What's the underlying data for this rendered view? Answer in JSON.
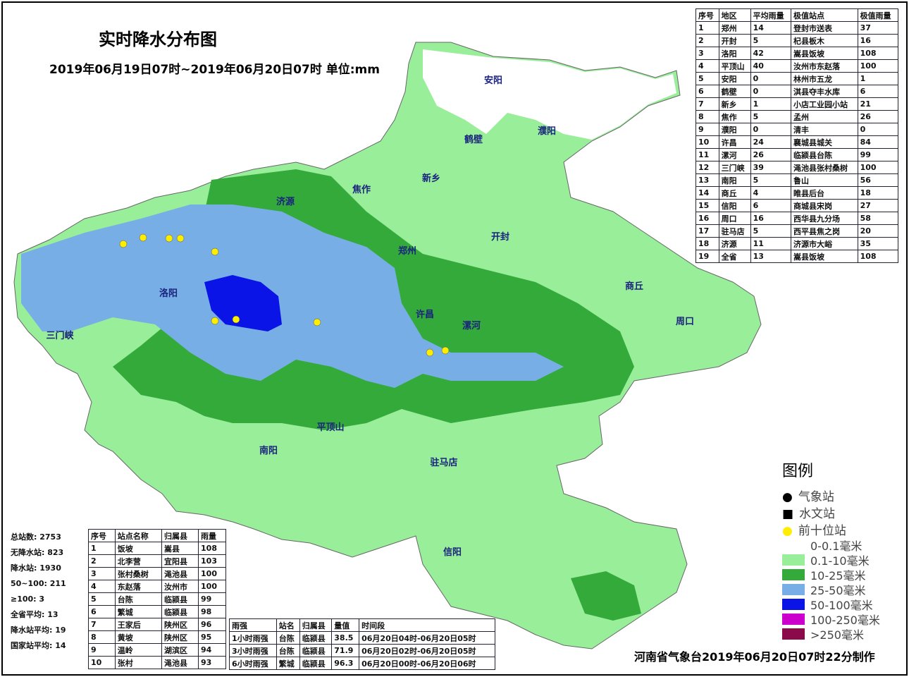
{
  "title": "实时降水分布图",
  "subtitle": "2019年06月19日07时~2019年06月20日07时 单位:mm",
  "region_table": {
    "header": [
      "序号",
      "地区",
      "平均雨量",
      "极值站点",
      "极值雨量"
    ],
    "rows": [
      [
        1,
        "郑州",
        14,
        "登封市送表",
        37
      ],
      [
        2,
        "开封",
        5,
        "杞县板木",
        16
      ],
      [
        3,
        "洛阳",
        42,
        "嵩县饭坡",
        108
      ],
      [
        4,
        "平顶山",
        40,
        "汝州市东赵落",
        100
      ],
      [
        5,
        "安阳",
        0,
        "林州市五龙",
        1
      ],
      [
        6,
        "鹤壁",
        0,
        "淇县夺丰水库",
        6
      ],
      [
        7,
        "新乡",
        1,
        "小店工业园小站",
        21
      ],
      [
        8,
        "焦作",
        5,
        "孟州",
        26
      ],
      [
        9,
        "濮阳",
        0,
        "清丰",
        0
      ],
      [
        10,
        "许昌",
        24,
        "襄城县城关",
        84
      ],
      [
        11,
        "漯河",
        26,
        "临颍县台陈",
        99
      ],
      [
        12,
        "三门峡",
        39,
        "渑池县张村桑树",
        100
      ],
      [
        13,
        "南阳",
        5,
        "鲁山",
        56
      ],
      [
        14,
        "商丘",
        4,
        "睢县后台",
        18
      ],
      [
        15,
        "信阳",
        6,
        "商城县宋岗",
        27
      ],
      [
        16,
        "周口",
        16,
        "西华县九分场",
        58
      ],
      [
        17,
        "驻马店",
        5,
        "西平县焦之岗",
        20
      ],
      [
        18,
        "济源",
        11,
        "济源市大峪",
        35
      ],
      [
        19,
        "全省",
        13,
        "嵩县饭坡",
        108
      ]
    ]
  },
  "stats": [
    [
      "总站数:",
      "2753"
    ],
    [
      "无降水站:",
      "823"
    ],
    [
      "降水站:",
      "1930"
    ],
    [
      "50~100:",
      "211"
    ],
    [
      "≥100:",
      "3"
    ],
    [
      "全省平均:",
      "13"
    ],
    [
      "降水站平均:",
      "19"
    ],
    [
      "国家站平均:",
      "14"
    ]
  ],
  "top10_table": {
    "header": [
      "序号",
      "站点名称",
      "归属县",
      "雨量"
    ],
    "rows": [
      [
        1,
        "饭坡",
        "嵩县",
        108
      ],
      [
        2,
        "北李营",
        "宜阳县",
        103
      ],
      [
        3,
        "张村桑树",
        "渑池县",
        100
      ],
      [
        4,
        "东赵落",
        "汝州市",
        100
      ],
      [
        5,
        "台陈",
        "临颍县",
        99
      ],
      [
        6,
        "繁城",
        "临颍县",
        98
      ],
      [
        7,
        "王家后",
        "陕州区",
        96
      ],
      [
        8,
        "黄坡",
        "陕州区",
        95
      ],
      [
        9,
        "温岭",
        "湖滨区",
        94
      ],
      [
        10,
        "张村",
        "渑池县",
        93
      ]
    ]
  },
  "intensity_table": {
    "header": [
      "雨强",
      "站名",
      "归属县",
      "量值",
      "时间段"
    ],
    "rows": [
      [
        "1小时雨强",
        "台陈",
        "临颍县",
        38.5,
        "06月20日04时-06月20日05时"
      ],
      [
        "3小时雨强",
        "台陈",
        "临颍县",
        71.9,
        "06月20日02时-06月20日05时"
      ],
      [
        "6小时雨强",
        "繁城",
        "临颍县",
        96.3,
        "06月20日00时-06月20日06时"
      ]
    ]
  },
  "legend": {
    "title": "图例",
    "stations": [
      "气象站",
      "水文站",
      "前十位站"
    ],
    "ranges": [
      {
        "label": "0-0.1毫米",
        "color": "#ffffff"
      },
      {
        "label": "0.1-10毫米",
        "color": "#99ee99"
      },
      {
        "label": "10-25毫米",
        "color": "#33aa3a"
      },
      {
        "label": "25-50毫米",
        "color": "#78aee6"
      },
      {
        "label": "50-100毫米",
        "color": "#0a14e6"
      },
      {
        "label": "100-250毫米",
        "color": "#cc00cc"
      },
      {
        "label": ">250毫米",
        "color": "#8a0a4a"
      }
    ]
  },
  "map_labels": [
    "安阳",
    "鹤壁",
    "濮阳",
    "新乡",
    "焦作",
    "济源",
    "郑州",
    "开封",
    "洛阳",
    "三门峡",
    "许昌",
    "漯河",
    "平顶山",
    "商丘",
    "周口",
    "南阳",
    "驻马店",
    "信阳"
  ],
  "footer": "河南省气象台2019年06月20日07时22分制作"
}
